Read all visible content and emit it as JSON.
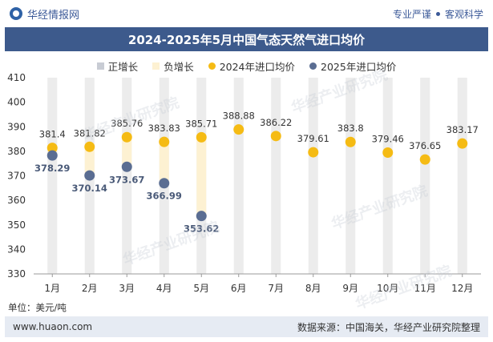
{
  "header": {
    "brand": "华经情报网",
    "slogan_left": "专业严谨",
    "slogan_right": "客观科学"
  },
  "watermarks": [
    "华经产业研究院",
    "华经产业研究院",
    "华经产业研究院",
    "华经产业研究院",
    "华经产业研究院"
  ],
  "footer": {
    "unit": "单位：美元/吨",
    "website": "www.huaon.com",
    "source": "数据来源：中国海关，华经产业研究院整理"
  },
  "chart_data": {
    "type": "bar",
    "title": "2024-2025年5月中国气态天然气进口均价",
    "categories": [
      "1月",
      "2月",
      "3月",
      "4月",
      "5月",
      "6月",
      "7月",
      "8月",
      "9月",
      "10月",
      "11月",
      "12月"
    ],
    "ylim": [
      330,
      410
    ],
    "yticks": [
      330,
      340,
      350,
      360,
      370,
      380,
      390,
      400,
      410
    ],
    "grid": false,
    "legend_position": "top",
    "series": [
      {
        "name": "正增长",
        "kind": "bar",
        "color": "#c8ccd4",
        "values": [
          null,
          null,
          null,
          null,
          null,
          null,
          null,
          null,
          null,
          null,
          null,
          null
        ]
      },
      {
        "name": "负增长",
        "kind": "bar",
        "color": "#fdf1d2",
        "values": [
          -3.11,
          -11.68,
          -12.09,
          -16.84,
          -32.09,
          null,
          null,
          null,
          null,
          null,
          null,
          null
        ]
      },
      {
        "name": "2024年进口均价",
        "kind": "scatter",
        "color": "#f5bb14",
        "values": [
          381.4,
          381.82,
          385.76,
          383.83,
          385.71,
          388.88,
          386.22,
          379.61,
          383.8,
          379.46,
          376.65,
          383.17
        ]
      },
      {
        "name": "2025年进口均价",
        "kind": "scatter",
        "color": "#5a6d92",
        "values": [
          378.29,
          370.14,
          373.67,
          366.99,
          353.62,
          null,
          null,
          null,
          null,
          null,
          null,
          null
        ]
      }
    ]
  }
}
